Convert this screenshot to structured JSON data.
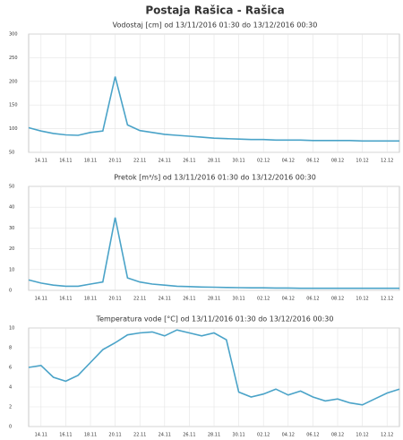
{
  "title": "Postaja Rašica - Rašica",
  "chart_data": [
    {
      "type": "line",
      "title": "Vodostaj [cm] od 13/11/2016 01:30 do 13/12/2016 00:30",
      "color": "#4aa3c8",
      "grid": true,
      "x": [
        "13.11",
        "14.11",
        "15.11",
        "16.11",
        "17.11",
        "18.11",
        "19.11",
        "20.11",
        "21.11",
        "22.11",
        "23.11",
        "24.11",
        "25.11",
        "26.11",
        "27.11",
        "28.11",
        "29.11",
        "30.11",
        "01.12",
        "02.12",
        "03.12",
        "04.12",
        "05.12",
        "06.12",
        "07.12",
        "08.12",
        "09.12",
        "10.12",
        "11.12",
        "12.12",
        "13.12"
      ],
      "values": [
        102,
        95,
        90,
        87,
        86,
        92,
        95,
        210,
        108,
        96,
        92,
        88,
        86,
        84,
        82,
        80,
        79,
        78,
        77,
        77,
        76,
        76,
        76,
        75,
        75,
        75,
        75,
        74,
        74,
        74,
        74
      ],
      "xticks": [
        "14.11",
        "16.11",
        "18.11",
        "20.11",
        "22.11",
        "24.11",
        "26.11",
        "28.11",
        "30.11",
        "02.12",
        "04.12",
        "06.12",
        "08.12",
        "10.12",
        "12.12"
      ],
      "ylim": [
        50,
        300
      ],
      "yticks": [
        50,
        100,
        150,
        200,
        250,
        300
      ]
    },
    {
      "type": "line",
      "title": "Pretok [m³/s] od 13/11/2016 01:30 do 13/12/2016 00:30",
      "color": "#4aa3c8",
      "grid": true,
      "x": [
        "13.11",
        "14.11",
        "15.11",
        "16.11",
        "17.11",
        "18.11",
        "19.11",
        "20.11",
        "21.11",
        "22.11",
        "23.11",
        "24.11",
        "25.11",
        "26.11",
        "27.11",
        "28.11",
        "29.11",
        "30.11",
        "01.12",
        "02.12",
        "03.12",
        "04.12",
        "05.12",
        "06.12",
        "07.12",
        "08.12",
        "09.12",
        "10.12",
        "11.12",
        "12.12",
        "13.12"
      ],
      "values": [
        5,
        3.5,
        2.5,
        2,
        2,
        3,
        4,
        35,
        6,
        4,
        3,
        2.5,
        2,
        1.8,
        1.6,
        1.5,
        1.4,
        1.3,
        1.2,
        1.2,
        1.1,
        1.1,
        1,
        1,
        1,
        1,
        1,
        1,
        1,
        1,
        1
      ],
      "xticks": [
        "14.11",
        "16.11",
        "18.11",
        "20.11",
        "22.11",
        "24.11",
        "26.11",
        "28.11",
        "30.11",
        "02.12",
        "04.12",
        "06.12",
        "08.12",
        "10.12",
        "12.12"
      ],
      "ylim": [
        0,
        50
      ],
      "yticks": [
        0,
        10,
        20,
        30,
        40,
        50
      ]
    },
    {
      "type": "line",
      "title": "Temperatura vode [°C] od 13/11/2016 01:30 do 13/12/2016 00:30",
      "color": "#4aa3c8",
      "grid": true,
      "x": [
        "13.11",
        "14.11",
        "15.11",
        "16.11",
        "17.11",
        "18.11",
        "19.11",
        "20.11",
        "21.11",
        "22.11",
        "23.11",
        "24.11",
        "25.11",
        "26.11",
        "27.11",
        "28.11",
        "29.11",
        "30.11",
        "01.12",
        "02.12",
        "03.12",
        "04.12",
        "05.12",
        "06.12",
        "07.12",
        "08.12",
        "09.12",
        "10.12",
        "11.12",
        "12.12",
        "13.12"
      ],
      "values": [
        6,
        6.2,
        5,
        4.6,
        5.2,
        6.5,
        7.8,
        8.5,
        9.3,
        9.5,
        9.6,
        9.2,
        9.8,
        9.5,
        9.2,
        9.5,
        8.8,
        3.5,
        3,
        3.3,
        3.8,
        3.2,
        3.6,
        3,
        2.6,
        2.8,
        2.4,
        2.2,
        2.8,
        3.4,
        3.8
      ],
      "xticks": [
        "14.11",
        "16.11",
        "18.11",
        "20.11",
        "22.11",
        "24.11",
        "26.11",
        "28.11",
        "30.11",
        "02.12",
        "04.12",
        "06.12",
        "08.12",
        "10.12",
        "12.12"
      ],
      "ylim": [
        0,
        10
      ],
      "yticks": [
        0,
        2,
        4,
        6,
        8,
        10
      ]
    }
  ]
}
